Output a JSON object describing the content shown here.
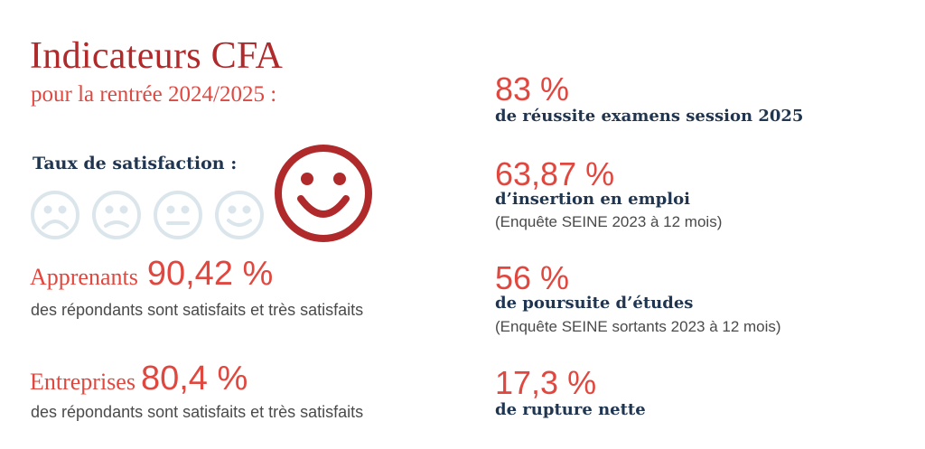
{
  "header": {
    "title": "Indicateurs CFA",
    "subtitle": "pour la rentrée 2024/2025 :"
  },
  "satisfaction": {
    "label": "Taux de satisfaction :",
    "scale_icons": [
      "very-sad-face-icon",
      "sad-face-icon",
      "neutral-face-icon",
      "smiling-face-icon",
      "very-happy-face-icon"
    ],
    "selected_level": 5,
    "colors": {
      "inactive": "#dbe5ec",
      "active": "#b02a2c"
    }
  },
  "left_metrics": [
    {
      "label": "Apprenants",
      "value": "90,42 %",
      "description": "des répondants sont satisfaits et très satisfaits"
    },
    {
      "label": "Entreprises",
      "value": "80,4 %",
      "description": "des répondants sont satisfaits et très satisfaits"
    }
  ],
  "right_metrics": [
    {
      "value": "83 %",
      "label": "de réussite examens session 2025",
      "note": ""
    },
    {
      "value": "63,87 %",
      "label": "d’insertion en emploi",
      "note": "(Enquête SEINE 2023 à 12 mois)"
    },
    {
      "value": "56 %",
      "label": "de poursuite d’études",
      "note": "(Enquête SEINE sortants 2023 à 12 mois)"
    },
    {
      "value": "17,3 %",
      "label": "de rupture nette",
      "note": ""
    }
  ],
  "colors": {
    "title_red": "#b02a2c",
    "accent_red": "#e0473f",
    "navy": "#1f3550",
    "body_gray": "#4a4a4a"
  }
}
